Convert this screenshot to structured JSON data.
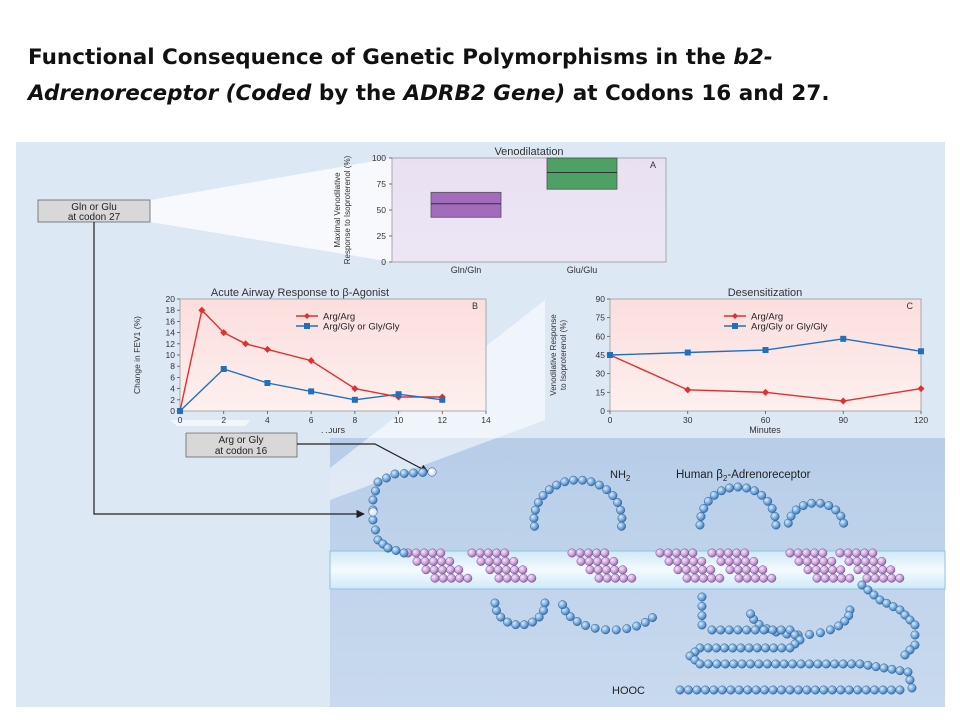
{
  "title": {
    "p1": "Functional Consequence of Genetic Polymorphisms in the ",
    "p2": "b2-Adrenoreceptor (Coded",
    "p3": " by the ",
    "p4": "ADRB2 Gene)",
    "p5": " at Codons 16 and 27."
  },
  "callouts": {
    "codon27": [
      "Gln or Glu",
      "at codon 27"
    ],
    "codon16": [
      "Arg or Gly",
      "at codon 16"
    ]
  },
  "receptor": {
    "nh2": "NH2",
    "name": "Human β2-Adrenoreceptor",
    "hooc": "HOOC"
  },
  "colors": {
    "background_panel": "#dde8f5",
    "red_series": "#e03030",
    "blue_series": "#2070c0",
    "bead_blue": "#6fa6db",
    "bead_purple": "#c9a0d8",
    "box_purple": "#9b5fb5",
    "box_green": "#3e9a55"
  },
  "chart_data": [
    {
      "type": "box",
      "panel_letter": "A",
      "title": "Venodilatation",
      "ylabel": "Maximal Venodilative Response to Isoproterenol (%)",
      "ylim": [
        0,
        100
      ],
      "yticks": [
        0,
        25,
        50,
        75,
        100
      ],
      "categories": [
        "Gln/Gln",
        "Glu/Glu"
      ],
      "boxes": [
        {
          "category": "Gln/Gln",
          "low": 43,
          "median": 56,
          "high": 67,
          "color": "#9b5fb5"
        },
        {
          "category": "Glu/Glu",
          "low": 70,
          "median": 86,
          "high": 100,
          "color": "#3e9a55"
        }
      ]
    },
    {
      "type": "line",
      "panel_letter": "B",
      "title": "Acute Airway Response to β-Agonist",
      "ylabel": "Change in FEV1 (%)",
      "xlabel": "Hours",
      "xlim": [
        0,
        14
      ],
      "ylim": [
        0,
        20
      ],
      "xticks": [
        0,
        2,
        4,
        6,
        8,
        10,
        12,
        14
      ],
      "yticks": [
        0,
        2,
        4,
        6,
        8,
        10,
        12,
        14,
        16,
        18,
        20
      ],
      "series": [
        {
          "name": "Arg/Arg",
          "color": "#e03030",
          "marker": "diamond",
          "x": [
            0,
            1,
            2,
            3,
            4,
            6,
            8,
            10,
            12
          ],
          "y": [
            0,
            18,
            14,
            12,
            11,
            9,
            4,
            2.5,
            2.5
          ]
        },
        {
          "name": "Arg/Gly or Gly/Gly",
          "color": "#2070c0",
          "marker": "square",
          "x": [
            0,
            2,
            4,
            6,
            8,
            10,
            12
          ],
          "y": [
            0,
            7.5,
            5,
            3.5,
            2,
            3,
            2
          ]
        }
      ]
    },
    {
      "type": "line",
      "panel_letter": "C",
      "title": "Desensitization",
      "ylabel": "Venodilative Response to Isoproterenol (%)",
      "xlabel": "Minutes",
      "xlim": [
        0,
        120
      ],
      "ylim": [
        0,
        90
      ],
      "xticks": [
        0,
        30,
        60,
        90,
        120
      ],
      "yticks": [
        0,
        15,
        30,
        45,
        60,
        75,
        90
      ],
      "series": [
        {
          "name": "Arg/Arg",
          "color": "#e03030",
          "marker": "diamond",
          "x": [
            0,
            30,
            60,
            90,
            120
          ],
          "y": [
            45,
            17,
            15,
            8,
            18
          ]
        },
        {
          "name": "Arg/Gly or Gly/Gly",
          "color": "#2070c0",
          "marker": "square",
          "x": [
            0,
            30,
            60,
            90,
            120
          ],
          "y": [
            45,
            47,
            49,
            58,
            48
          ]
        }
      ]
    }
  ]
}
